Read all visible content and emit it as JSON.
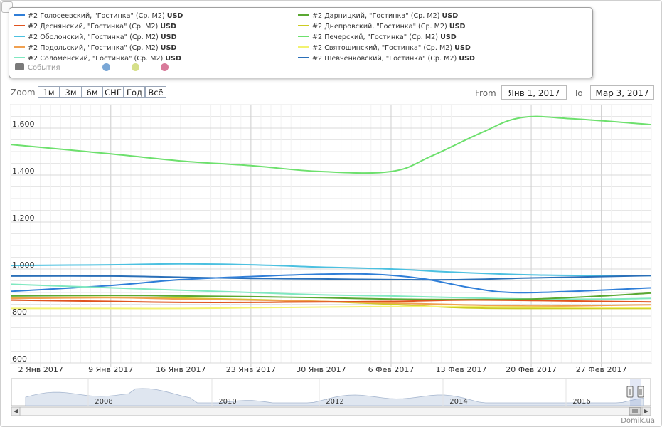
{
  "legend": {
    "items": [
      {
        "name": "#2 Голосеевский, \"Гостинка\" (Ср. М2)",
        "unit": "USD",
        "color": "#2f7ed8"
      },
      {
        "name": "#2 Дарницкий, \"Гостинка\" (Ср. М2)",
        "unit": "USD",
        "color": "#5aa832"
      },
      {
        "name": "#2 Деснянский, \"Гостинка\" (Ср. М2)",
        "unit": "USD",
        "color": "#e0531f"
      },
      {
        "name": "#2 Днепровский, \"Гостинка\" (Ср. М2)",
        "unit": "USD",
        "color": "#cccc22"
      },
      {
        "name": "#2 Оболонский, \"Гостинка\" (Ср. М2)",
        "unit": "USD",
        "color": "#4bc0e0"
      },
      {
        "name": "#2 Печерский, \"Гостинка\" (Ср. М2)",
        "unit": "USD",
        "color": "#6de06d"
      },
      {
        "name": "#2 Подольский, \"Гостинка\" (Ср. М2)",
        "unit": "USD",
        "color": "#f0a050"
      },
      {
        "name": "#2 Святошинский, \"Гостинка\" (Ср. М2)",
        "unit": "USD",
        "color": "#f2f270"
      },
      {
        "name": "#2 Соломенский, \"Гостинка\" (Ср. М2)",
        "unit": "USD",
        "color": "#80e8c0"
      },
      {
        "name": "#2 Шевченковский, \"Гостинка\" (Ср. М2)",
        "unit": "USD",
        "color": "#2a6fb8"
      }
    ],
    "events_label": "События",
    "dot_colors": [
      "#7aa7d6",
      "#d6e08a",
      "#d87a9a"
    ]
  },
  "zoom": {
    "label": "Zoom",
    "buttons": [
      "1м",
      "3м",
      "6м",
      "СНГ",
      "Год",
      "Всё"
    ]
  },
  "range": {
    "from_label": "From",
    "from_value": "Янв 1, 2017",
    "to_label": "To",
    "to_value": "Мар 3, 2017"
  },
  "credit": "Domik.ua",
  "chart_data": {
    "type": "line",
    "x_type": "datetime",
    "x_range": [
      "2016-12-30",
      "2017-03-04"
    ],
    "y_range": [
      600,
      1700
    ],
    "y_ticks": [
      600,
      800,
      1000,
      1200,
      1400,
      1600
    ],
    "y_tick_labels": [
      "600",
      "800",
      "1,000",
      "1,200",
      "1,400",
      "1,600"
    ],
    "x_ticks": [
      "2017-01-02",
      "2017-01-09",
      "2017-01-16",
      "2017-01-23",
      "2017-01-30",
      "2017-02-06",
      "2017-02-13",
      "2017-02-20",
      "2017-02-27"
    ],
    "x_tick_labels": [
      "2 Янв 2017",
      "9 Янв 2017",
      "16 Янв 2017",
      "23 Янв 2017",
      "30 Янв 2017",
      "6 Фев 2017",
      "13 Фев 2017",
      "20 Фев 2017",
      "27 Фев 2017"
    ],
    "grid": true,
    "series": [
      {
        "name": "#2 Печерский, \"Гостинка\" (Ср. М2)",
        "color": "#6de06d",
        "points": [
          [
            "2016-12-30",
            1530
          ],
          [
            "2017-01-09",
            1490
          ],
          [
            "2017-01-16",
            1460
          ],
          [
            "2017-01-23",
            1440
          ],
          [
            "2017-01-30",
            1415
          ],
          [
            "2017-02-06",
            1415
          ],
          [
            "2017-02-10",
            1480
          ],
          [
            "2017-02-15",
            1580
          ],
          [
            "2017-02-19",
            1645
          ],
          [
            "2017-02-24",
            1640
          ],
          [
            "2017-03-04",
            1615
          ]
        ]
      },
      {
        "name": "#2 Оболонский, \"Гостинка\" (Ср. М2)",
        "color": "#4bc0e0",
        "points": [
          [
            "2016-12-30",
            1015
          ],
          [
            "2017-01-09",
            1018
          ],
          [
            "2017-01-16",
            1022
          ],
          [
            "2017-01-23",
            1018
          ],
          [
            "2017-01-30",
            1008
          ],
          [
            "2017-02-06",
            1000
          ],
          [
            "2017-02-13",
            985
          ],
          [
            "2017-02-20",
            975
          ],
          [
            "2017-02-27",
            972
          ],
          [
            "2017-03-04",
            972
          ]
        ]
      },
      {
        "name": "#2 Шевченковский, \"Гостинка\" (Ср. М2)",
        "color": "#2a6fb8",
        "points": [
          [
            "2016-12-30",
            970
          ],
          [
            "2017-01-09",
            970
          ],
          [
            "2017-01-16",
            965
          ],
          [
            "2017-01-23",
            960
          ],
          [
            "2017-01-30",
            958
          ],
          [
            "2017-02-06",
            955
          ],
          [
            "2017-02-13",
            955
          ],
          [
            "2017-02-20",
            962
          ],
          [
            "2017-02-27",
            968
          ],
          [
            "2017-03-04",
            972
          ]
        ]
      },
      {
        "name": "#2 Голосеевский, \"Гостинка\" (Ср. М2)",
        "color": "#2f7ed8",
        "points": [
          [
            "2016-12-30",
            905
          ],
          [
            "2017-01-09",
            930
          ],
          [
            "2017-01-16",
            955
          ],
          [
            "2017-01-23",
            968
          ],
          [
            "2017-01-30",
            978
          ],
          [
            "2017-02-04",
            978
          ],
          [
            "2017-02-09",
            960
          ],
          [
            "2017-02-14",
            920
          ],
          [
            "2017-02-18",
            900
          ],
          [
            "2017-02-24",
            905
          ],
          [
            "2017-03-04",
            920
          ]
        ]
      },
      {
        "name": "#2 Соломенский, \"Гостинка\" (Ср. М2)",
        "color": "#80e8c0",
        "points": [
          [
            "2016-12-30",
            935
          ],
          [
            "2017-01-09",
            920
          ],
          [
            "2017-01-16",
            910
          ],
          [
            "2017-01-23",
            900
          ],
          [
            "2017-01-30",
            890
          ],
          [
            "2017-02-06",
            885
          ],
          [
            "2017-02-13",
            878
          ],
          [
            "2017-02-20",
            872
          ],
          [
            "2017-02-27",
            872
          ],
          [
            "2017-03-04",
            875
          ]
        ]
      },
      {
        "name": "#2 Дарницкий, \"Гостинка\" (Ср. М2)",
        "color": "#5aa832",
        "points": [
          [
            "2016-12-30",
            885
          ],
          [
            "2017-01-09",
            888
          ],
          [
            "2017-01-16",
            885
          ],
          [
            "2017-01-23",
            882
          ],
          [
            "2017-01-30",
            878
          ],
          [
            "2017-02-06",
            872
          ],
          [
            "2017-02-13",
            870
          ],
          [
            "2017-02-20",
            872
          ],
          [
            "2017-02-27",
            885
          ],
          [
            "2017-03-04",
            898
          ]
        ]
      },
      {
        "name": "#2 Днепровский, \"Гостинка\" (Ср. М2)",
        "color": "#cccc22",
        "points": [
          [
            "2016-12-30",
            878
          ],
          [
            "2017-01-09",
            880
          ],
          [
            "2017-01-16",
            876
          ],
          [
            "2017-01-23",
            870
          ],
          [
            "2017-01-30",
            862
          ],
          [
            "2017-02-06",
            850
          ],
          [
            "2017-02-13",
            835
          ],
          [
            "2017-02-20",
            832
          ],
          [
            "2017-02-27",
            832
          ],
          [
            "2017-03-04",
            832
          ]
        ]
      },
      {
        "name": "#2 Подольский, \"Гостинка\" (Ср. М2)",
        "color": "#f0a050",
        "points": [
          [
            "2016-12-30",
            875
          ],
          [
            "2017-01-09",
            878
          ],
          [
            "2017-01-16",
            872
          ],
          [
            "2017-01-23",
            868
          ],
          [
            "2017-01-30",
            862
          ],
          [
            "2017-02-06",
            855
          ],
          [
            "2017-02-13",
            848
          ],
          [
            "2017-02-20",
            842
          ],
          [
            "2017-02-27",
            845
          ],
          [
            "2017-03-04",
            848
          ]
        ]
      },
      {
        "name": "#2 Деснянский, \"Гостинка\" (Ср. М2)",
        "color": "#e0531f",
        "points": [
          [
            "2016-12-30",
            868
          ],
          [
            "2017-01-09",
            862
          ],
          [
            "2017-01-16",
            858
          ],
          [
            "2017-01-23",
            858
          ],
          [
            "2017-01-30",
            860
          ],
          [
            "2017-02-06",
            862
          ],
          [
            "2017-02-13",
            868
          ],
          [
            "2017-02-20",
            866
          ],
          [
            "2017-02-27",
            862
          ],
          [
            "2017-03-04",
            860
          ]
        ]
      },
      {
        "name": "#2 Святошинский, \"Гостинка\" (Ср. М2)",
        "color": "#f2f270",
        "points": [
          [
            "2016-12-30",
            832
          ],
          [
            "2017-01-09",
            832
          ],
          [
            "2017-01-16",
            832
          ],
          [
            "2017-01-23",
            835
          ],
          [
            "2017-01-30",
            838
          ],
          [
            "2017-02-06",
            840
          ],
          [
            "2017-02-13",
            840
          ],
          [
            "2017-02-20",
            838
          ],
          [
            "2017-02-27",
            836
          ],
          [
            "2017-03-04",
            836
          ]
        ]
      }
    ]
  },
  "navigator": {
    "years": [
      "2008",
      "2010",
      "2012",
      "2014",
      "2016"
    ]
  }
}
